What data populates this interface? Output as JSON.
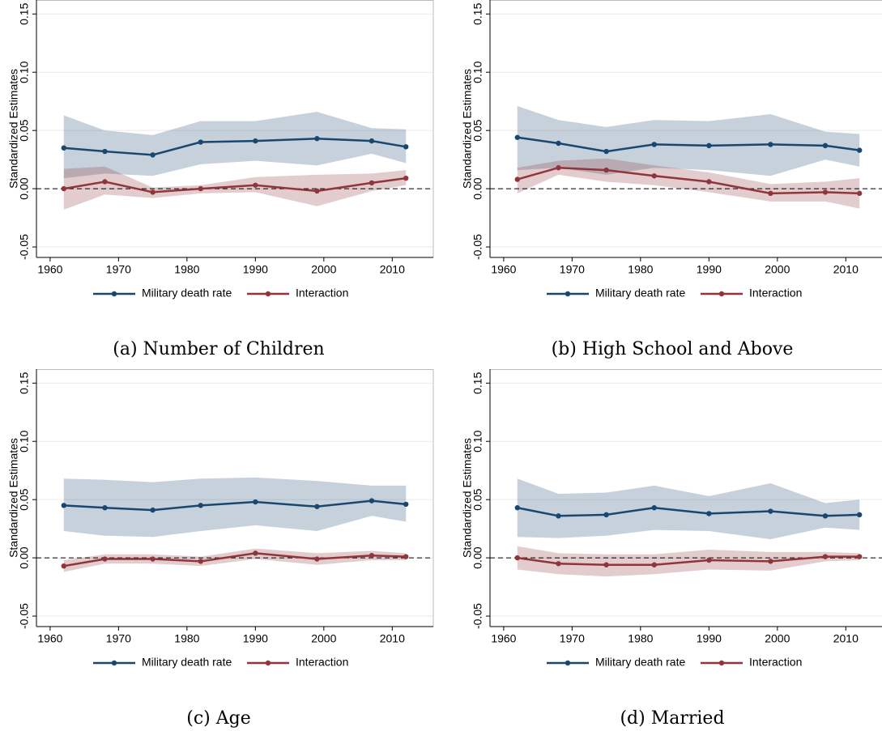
{
  "chart_data": [
    {
      "type": "line",
      "caption": "(a) Number of Children",
      "ylabel": "Standardized Estimates",
      "x": [
        1962,
        1968,
        1975,
        1982,
        1990,
        1999,
        2007,
        2012
      ],
      "xlim": [
        1958,
        2016
      ],
      "xticks": [
        1960,
        1970,
        1980,
        1990,
        2000,
        2010
      ],
      "ylim": [
        -0.059,
        0.162
      ],
      "yticks": [
        -0.05,
        {
          "value": 0,
          "label": "0.00"
        },
        0.05,
        {
          "value": 0.1,
          "label": "0.10"
        },
        0.15
      ],
      "grid": true,
      "hline": 0,
      "series": [
        {
          "name": "Military death rate",
          "color": "#1a476f",
          "values": [
            0.035,
            0.032,
            0.029,
            0.04,
            0.041,
            0.043,
            0.041,
            0.036
          ],
          "lower": [
            0.009,
            0.013,
            0.011,
            0.021,
            0.024,
            0.02,
            0.03,
            0.022
          ],
          "upper": [
            0.063,
            0.05,
            0.046,
            0.058,
            0.058,
            0.066,
            0.052,
            0.051
          ]
        },
        {
          "name": "Interaction",
          "color": "#90353b",
          "values": [
            0.0,
            0.006,
            -0.003,
            0.0,
            0.003,
            -0.002,
            0.005,
            0.009
          ],
          "lower": [
            -0.018,
            -0.005,
            -0.008,
            -0.004,
            -0.003,
            -0.015,
            -0.002,
            0.003
          ],
          "upper": [
            0.017,
            0.019,
            0.001,
            0.003,
            0.01,
            0.012,
            0.013,
            0.016
          ]
        }
      ]
    },
    {
      "type": "line",
      "caption": "(b) High School and Above",
      "ylabel": "Standardized Estimates",
      "x": [
        1962,
        1968,
        1975,
        1982,
        1990,
        1999,
        2007,
        2012
      ],
      "xlim": [
        1958,
        2016
      ],
      "xticks": [
        1960,
        1970,
        1980,
        1990,
        2000,
        2010
      ],
      "ylim": [
        -0.059,
        0.162
      ],
      "yticks": [
        -0.05,
        {
          "value": 0,
          "label": "0.00"
        },
        0.05,
        {
          "value": 0.1,
          "label": "0.10"
        },
        0.15
      ],
      "grid": true,
      "hline": 0,
      "series": [
        {
          "name": "Military death rate",
          "color": "#1a476f",
          "values": [
            0.044,
            0.039,
            0.032,
            0.038,
            0.037,
            0.038,
            0.037,
            0.033
          ],
          "lower": [
            0.016,
            0.018,
            0.012,
            0.018,
            0.016,
            0.011,
            0.025,
            0.019
          ],
          "upper": [
            0.071,
            0.059,
            0.053,
            0.059,
            0.058,
            0.064,
            0.049,
            0.047
          ]
        },
        {
          "name": "Interaction",
          "color": "#90353b",
          "values": [
            0.008,
            0.018,
            0.016,
            0.011,
            0.006,
            -0.004,
            -0.003,
            -0.004
          ],
          "lower": [
            -0.004,
            0.012,
            0.006,
            0.003,
            -0.003,
            -0.011,
            -0.011,
            -0.017
          ],
          "upper": [
            0.018,
            0.024,
            0.026,
            0.02,
            0.014,
            0.004,
            0.006,
            0.009
          ]
        }
      ]
    },
    {
      "type": "line",
      "caption": "(c) Age",
      "ylabel": "Standardized Estimates",
      "x": [
        1962,
        1968,
        1975,
        1982,
        1990,
        1999,
        2007,
        2012
      ],
      "xlim": [
        1958,
        2016
      ],
      "xticks": [
        1960,
        1970,
        1980,
        1990,
        2000,
        2010
      ],
      "ylim": [
        -0.059,
        0.162
      ],
      "yticks": [
        -0.05,
        {
          "value": 0,
          "label": "0.00"
        },
        0.05,
        {
          "value": 0.1,
          "label": "0.10"
        },
        0.15
      ],
      "grid": true,
      "hline": 0,
      "series": [
        {
          "name": "Military death rate",
          "color": "#1a476f",
          "values": [
            0.045,
            0.043,
            0.041,
            0.045,
            0.048,
            0.044,
            0.049,
            0.046
          ],
          "lower": [
            0.023,
            0.019,
            0.018,
            0.023,
            0.028,
            0.023,
            0.036,
            0.031
          ],
          "upper": [
            0.068,
            0.067,
            0.065,
            0.068,
            0.069,
            0.066,
            0.062,
            0.062
          ]
        },
        {
          "name": "Interaction",
          "color": "#90353b",
          "values": [
            -0.007,
            -0.001,
            -0.001,
            -0.003,
            0.004,
            -0.001,
            0.002,
            0.001
          ],
          "lower": [
            -0.012,
            -0.005,
            -0.005,
            -0.007,
            -0.001,
            -0.006,
            -0.002,
            -0.002
          ],
          "upper": [
            -0.002,
            0.003,
            0.003,
            0.001,
            0.008,
            0.004,
            0.006,
            0.004
          ]
        }
      ]
    },
    {
      "type": "line",
      "caption": "(d) Married",
      "ylabel": "Standardized Estimates",
      "x": [
        1962,
        1968,
        1975,
        1982,
        1990,
        1999,
        2007,
        2012
      ],
      "xlim": [
        1958,
        2016
      ],
      "xticks": [
        1960,
        1970,
        1980,
        1990,
        2000,
        2010
      ],
      "ylim": [
        -0.059,
        0.162
      ],
      "yticks": [
        -0.05,
        {
          "value": 0,
          "label": "0.00"
        },
        0.05,
        {
          "value": 0.1,
          "label": "0.10"
        },
        0.15
      ],
      "grid": true,
      "hline": 0,
      "series": [
        {
          "name": "Military death rate",
          "color": "#1a476f",
          "values": [
            0.043,
            0.036,
            0.037,
            0.043,
            0.038,
            0.04,
            0.036,
            0.037
          ],
          "lower": [
            0.018,
            0.017,
            0.019,
            0.024,
            0.023,
            0.016,
            0.026,
            0.024
          ],
          "upper": [
            0.068,
            0.055,
            0.056,
            0.062,
            0.053,
            0.064,
            0.047,
            0.05
          ]
        },
        {
          "name": "Interaction",
          "color": "#90353b",
          "values": [
            0.0,
            -0.005,
            -0.006,
            -0.006,
            -0.002,
            -0.003,
            0.001,
            0.001
          ],
          "lower": [
            -0.01,
            -0.014,
            -0.016,
            -0.014,
            -0.01,
            -0.011,
            -0.003,
            -0.002
          ],
          "upper": [
            0.01,
            0.004,
            0.003,
            0.003,
            0.007,
            0.005,
            0.005,
            0.004
          ]
        }
      ]
    }
  ]
}
